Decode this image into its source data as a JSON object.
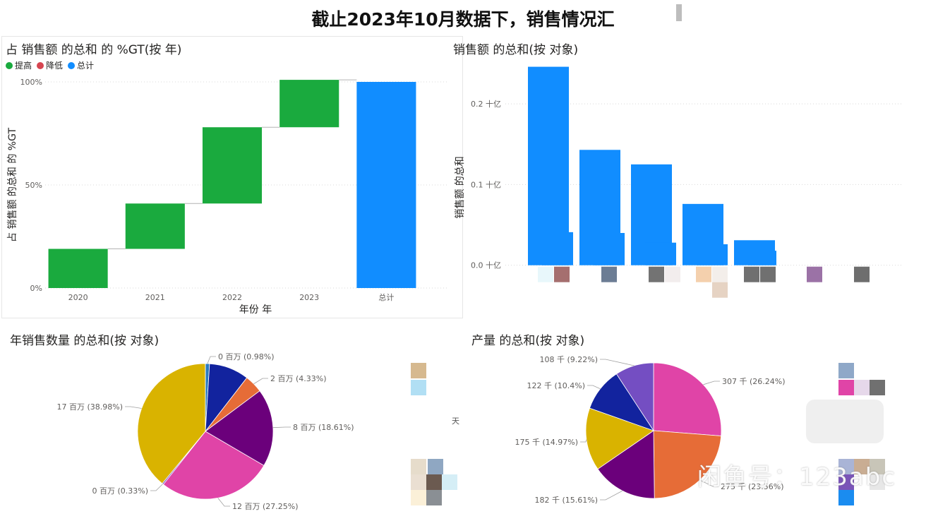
{
  "page_title": "截止2023年10月数据下，销售情况汇",
  "watermark": "闲鱼号：123abc",
  "colors": {
    "increase": "#1aaa3e",
    "decrease": "#d64550",
    "total": "#118dff",
    "connector": "#b3b3b3"
  },
  "chart_data": [
    {
      "type": "waterfall",
      "title": "占 销售额 的总和 的 %GT(按 年)",
      "xlabel": "年份 年",
      "ylabel": "占 销售额 的总和 的 %GT",
      "legend": [
        {
          "label": "提高",
          "color": "#1aaa3e"
        },
        {
          "label": "降低",
          "color": "#d64550"
        },
        {
          "label": "总计",
          "color": "#118dff"
        }
      ],
      "legend_position": "top-left",
      "categories": [
        "2020",
        "2021",
        "2022",
        "2023",
        "总计"
      ],
      "values": [
        19,
        22,
        37,
        23,
        100
      ],
      "is_total": [
        false,
        false,
        false,
        false,
        true
      ],
      "ylim": [
        0,
        100
      ],
      "yticks": [
        {
          "value": 0,
          "label": "0%"
        },
        {
          "value": 50,
          "label": "50%"
        },
        {
          "value": 100,
          "label": "100%"
        }
      ],
      "grid": true
    },
    {
      "type": "bar",
      "title": "销售额 的总和(按 对象)",
      "ylabel": "销售额 的总和",
      "ylim": [
        -0.03,
        0.25
      ],
      "yticks": [
        {
          "value": 0,
          "label": "0.0 十亿"
        },
        {
          "value": 0.1,
          "label": "0.1 十亿"
        },
        {
          "value": 0.2,
          "label": "0.2 十亿"
        }
      ],
      "grid": true,
      "series_color": "#118dff",
      "bars": [
        {
          "x": 0,
          "value": 0.246
        },
        {
          "x": 1,
          "value": 0.041
        },
        {
          "x": 2,
          "value": 0.143
        },
        {
          "x": 3,
          "value": 0.04
        },
        {
          "x": 4,
          "value": 0.125
        },
        {
          "x": 5,
          "value": 0.028
        },
        {
          "x": 6,
          "value": 0.076
        },
        {
          "x": 7,
          "value": 0.026
        },
        {
          "x": 8,
          "value": 0.031
        },
        {
          "x": 9,
          "value": 0.018
        }
      ],
      "category_swatches": [
        "#e8f7fb",
        "#a56f6f",
        "#6c7d94",
        "#737373",
        "#f2eded",
        "#f4d0ad",
        "#f3eeea",
        "#707070",
        "#707070",
        "#9b72a6",
        "#6e6e6e",
        "#e6d3c3"
      ]
    },
    {
      "type": "pie",
      "title": "年销售数量 的总和(按 对象)",
      "slices": [
        {
          "label": "0 百万 (0.98%)",
          "percent": 0.98,
          "color": "#2b7bc0"
        },
        {
          "label": "",
          "percent": 9.5,
          "color": "#12239e"
        },
        {
          "label": "2 百万 (4.33%)",
          "percent": 4.33,
          "color": "#e66c37"
        },
        {
          "label": "8 百万 (18.61%)",
          "percent": 18.61,
          "color": "#6b007b"
        },
        {
          "label": "12 百万 (27.25%)",
          "percent": 27.25,
          "color": "#e044a7"
        },
        {
          "label": "0 百万 (0.33%)",
          "percent": 0.33,
          "color": "#744ec2"
        },
        {
          "label": "17 百万 (38.98%)",
          "percent": 38.98,
          "color": "#d9b300"
        }
      ],
      "legend_swatches": [
        "#d6b98f",
        "#b1dff4",
        "#e6dccb",
        "#8fa7c2",
        "#eadfd2",
        "#6b5a50",
        "#d5eef6",
        "#fbf0d8",
        "#8a8f94"
      ],
      "stray_text": "天"
    },
    {
      "type": "pie",
      "title": "产量 的总和(按 对象)",
      "slices": [
        {
          "label": "307 千 (26.24%)",
          "percent": 26.24,
          "color": "#e044a7"
        },
        {
          "label": "275 千 (23.56%)",
          "percent": 23.56,
          "color": "#e66c37"
        },
        {
          "label": "182 千 (15.61%)",
          "percent": 15.61,
          "color": "#6b007b"
        },
        {
          "label": "175 千 (14.97%)",
          "percent": 14.97,
          "color": "#d9b300"
        },
        {
          "label": "122 千 (10.4%)",
          "percent": 10.4,
          "color": "#12239e"
        },
        {
          "label": "108 千 (9.22%)",
          "percent": 9.22,
          "color": "#744ec2"
        }
      ],
      "legend_swatches": [
        "#8fa8c8",
        "#e044a7",
        "#e6d8ea",
        "#707070",
        "#a9b4d6",
        "#c9ad93",
        "#c8c5b8",
        "#7a55b8",
        "#1a8cf0",
        "#e7e7e7"
      ]
    }
  ]
}
